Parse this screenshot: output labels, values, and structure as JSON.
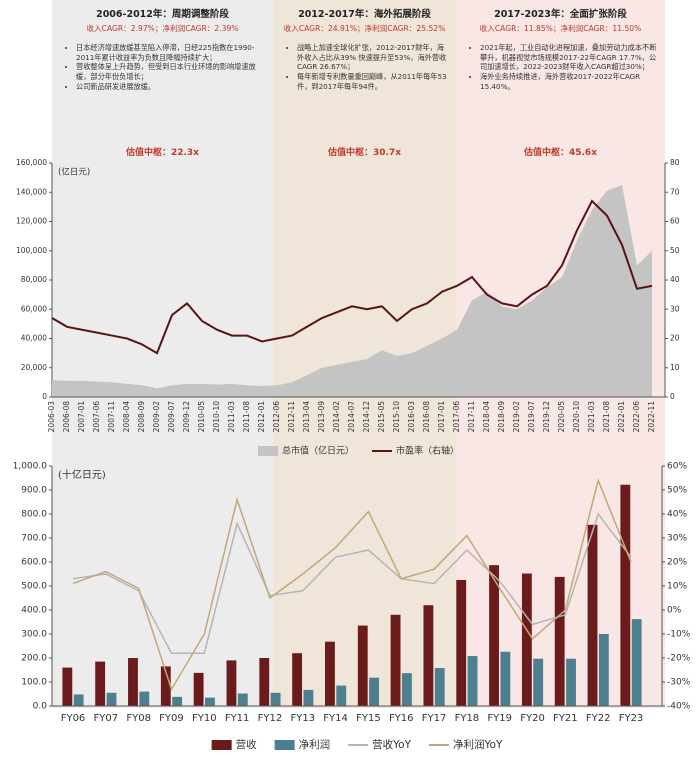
{
  "phases": [
    {
      "title": "2006-2012年：周期调整阶段",
      "cagr": "收入CAGR：2.97%；净利润CAGR：2.39%",
      "bullets": [
        "日本经济增速放缓甚至陷入停滞，日经225指数在1990-2011年累计收益率为负数且降幅持续扩大；",
        "营收整体呈上升趋势，但受到日本行业环境的影响增速放缓，部分年份负增长；",
        "公司新品研发进展放缓。"
      ],
      "valuation": "估值中枢：22.3x"
    },
    {
      "title": "2012-2017年：海外拓展阶段",
      "cagr": "收入CAGR：24.91%；净利润CAGR：25.52%",
      "bullets": [
        "战略上加速全球化扩张，2012-2017财年，海外收入占比从39% 快速提升至53%，海外营收CAGR 26.67%；",
        "每年新增专利数量重回巅峰，从2011年每年53件，到2017年每年94件。"
      ],
      "valuation": "估值中枢：30.7x"
    },
    {
      "title": "2017-2023年：全面扩张阶段",
      "cagr": "收入CAGR：11.85%；净利润CAGR：11.50%",
      "bullets": [
        "2021年起，工业自动化进程加速，叠加劳动力成本不断攀升，机器视觉市场规模2017-22年CAGR 17.7%，公司加速增长，2022-2023财年收入CAGR超过30%；",
        "海外业务持续推进，海外营收2017-2022年CAGR 15.40%。"
      ],
      "valuation": "估值中枢：45.6x"
    }
  ],
  "chart_data": [
    {
      "type": "combo",
      "ylabel": "(亿日元)",
      "legend": "bottom",
      "categories": [
        "2006-03",
        "2006-08",
        "2007-01",
        "2007-06",
        "2007-11",
        "2008-04",
        "2008-09",
        "2009-02",
        "2009-07",
        "2009-12",
        "2010-05",
        "2010-10",
        "2011-03",
        "2011-08",
        "2012-01",
        "2012-06",
        "2012-11",
        "2013-04",
        "2013-09",
        "2014-02",
        "2014-07",
        "2014-12",
        "2015-05",
        "2015-10",
        "2016-03",
        "2016-08",
        "2017-01",
        "2017-06",
        "2017-11",
        "2018-04",
        "2018-09",
        "2019-02",
        "2019-07",
        "2019-12",
        "2020-05",
        "2020-10",
        "2021-03",
        "2021-08",
        "2022-01",
        "2022-06",
        "2022-11"
      ],
      "ylim": [
        0,
        160000
      ],
      "yticks": [
        0,
        {
          "value": 20000,
          "label": "20,000"
        },
        {
          "value": 40000,
          "label": "40,000"
        },
        {
          "value": 60000,
          "label": "60,000"
        },
        {
          "value": 80000,
          "label": "80,000"
        },
        {
          "value": 100000,
          "label": "100,000"
        },
        {
          "value": 120000,
          "label": "120,000"
        },
        {
          "value": 140000,
          "label": "140,000"
        },
        {
          "value": 160000,
          "label": "160,000"
        }
      ],
      "y2lim": [
        0,
        80
      ],
      "y2ticks": [
        0,
        10,
        20,
        30,
        40,
        50,
        60,
        70,
        80
      ],
      "series": [
        {
          "name": "总市值（亿日元）",
          "type": "area",
          "color": "#c4c4c4",
          "values": [
            11600,
            11000,
            11000,
            10500,
            10000,
            9000,
            8000,
            6000,
            8000,
            9000,
            9000,
            8500,
            9000,
            8000,
            7500,
            8000,
            10000,
            15000,
            20000,
            22000,
            24000,
            26000,
            32000,
            28000,
            30000,
            35000,
            40000,
            46000,
            66000,
            72000,
            62000,
            60000,
            66000,
            75000,
            82000,
            107000,
            128000,
            141000,
            145000,
            90000,
            100000
          ]
        },
        {
          "name": "市盈率（右轴）",
          "type": "line",
          "axis": "y2",
          "color": "#5a1414",
          "values": [
            27,
            24,
            23,
            22,
            21,
            20,
            18,
            15,
            28,
            32,
            26,
            23,
            21,
            21,
            19,
            20,
            21,
            24,
            27,
            29,
            31,
            30,
            31,
            26,
            30,
            32,
            36,
            38,
            41,
            35,
            32,
            31,
            35,
            38,
            45,
            57,
            67,
            62,
            52,
            37,
            38
          ]
        }
      ]
    },
    {
      "type": "combo",
      "ylabel": "(十亿日元)",
      "legend": "bottom",
      "categories": [
        "FY06",
        "FY07",
        "FY08",
        "FY09",
        "FY10",
        "FY11",
        "FY12",
        "FY13",
        "FY14",
        "FY15",
        "FY16",
        "FY17",
        "FY18",
        "FY19",
        "FY20",
        "FY21",
        "FY22",
        "FY23"
      ],
      "ylim": [
        0,
        1000
      ],
      "yticks": [
        {
          "value": 0,
          "label": "0.0"
        },
        {
          "value": 100,
          "label": "100.0"
        },
        {
          "value": 200,
          "label": "200.0"
        },
        {
          "value": 300,
          "label": "300.0"
        },
        {
          "value": 400,
          "label": "400.0"
        },
        {
          "value": 500,
          "label": "500.0"
        },
        {
          "value": 600,
          "label": "600.0"
        },
        {
          "value": 700,
          "label": "700.0"
        },
        {
          "value": 800,
          "label": "800.0"
        },
        {
          "value": 900,
          "label": "900.0"
        },
        {
          "value": 1000,
          "label": "1,000.0"
        }
      ],
      "y2lim": [
        -40,
        60
      ],
      "y2ticks": [
        {
          "value": -40,
          "label": "-40%"
        },
        {
          "value": -30,
          "label": "-30%"
        },
        {
          "value": -20,
          "label": "-20%"
        },
        {
          "value": -10,
          "label": "-10%"
        },
        {
          "value": 0,
          "label": "0%"
        },
        {
          "value": 10,
          "label": "10%"
        },
        {
          "value": 20,
          "label": "20%"
        },
        {
          "value": 30,
          "label": "30%"
        },
        {
          "value": 40,
          "label": "40%"
        },
        {
          "value": 50,
          "label": "50%"
        },
        {
          "value": 60,
          "label": "60%"
        }
      ],
      "series": [
        {
          "name": "营收",
          "type": "bar",
          "color": "#6b1b1b",
          "values": [
            160,
            185,
            200,
            165,
            138,
            190,
            200,
            220,
            268,
            335,
            380,
            420,
            525,
            587,
            552,
            538,
            755,
            922
          ]
        },
        {
          "name": "净利润",
          "type": "bar",
          "color": "#4d7f8e",
          "values": [
            48,
            55,
            60,
            38,
            35,
            52,
            55,
            67,
            85,
            118,
            137,
            158,
            208,
            226,
            197,
            197,
            300,
            362
          ]
        },
        {
          "name": "营收YoY",
          "type": "line",
          "axis": "y2",
          "color": "#b5b5b5",
          "values": [
            13,
            15,
            8,
            -18,
            -18,
            36,
            6,
            8,
            22,
            25,
            13,
            11,
            25,
            12,
            -6,
            -2,
            40,
            22
          ]
        },
        {
          "name": "净利润YoY",
          "type": "line",
          "axis": "y2",
          "color": "#c2a878",
          "values": [
            11,
            16,
            9,
            -33,
            -10,
            46,
            5,
            15,
            26,
            41,
            13,
            17,
            31,
            9,
            -12,
            0,
            54,
            20
          ]
        }
      ]
    }
  ]
}
